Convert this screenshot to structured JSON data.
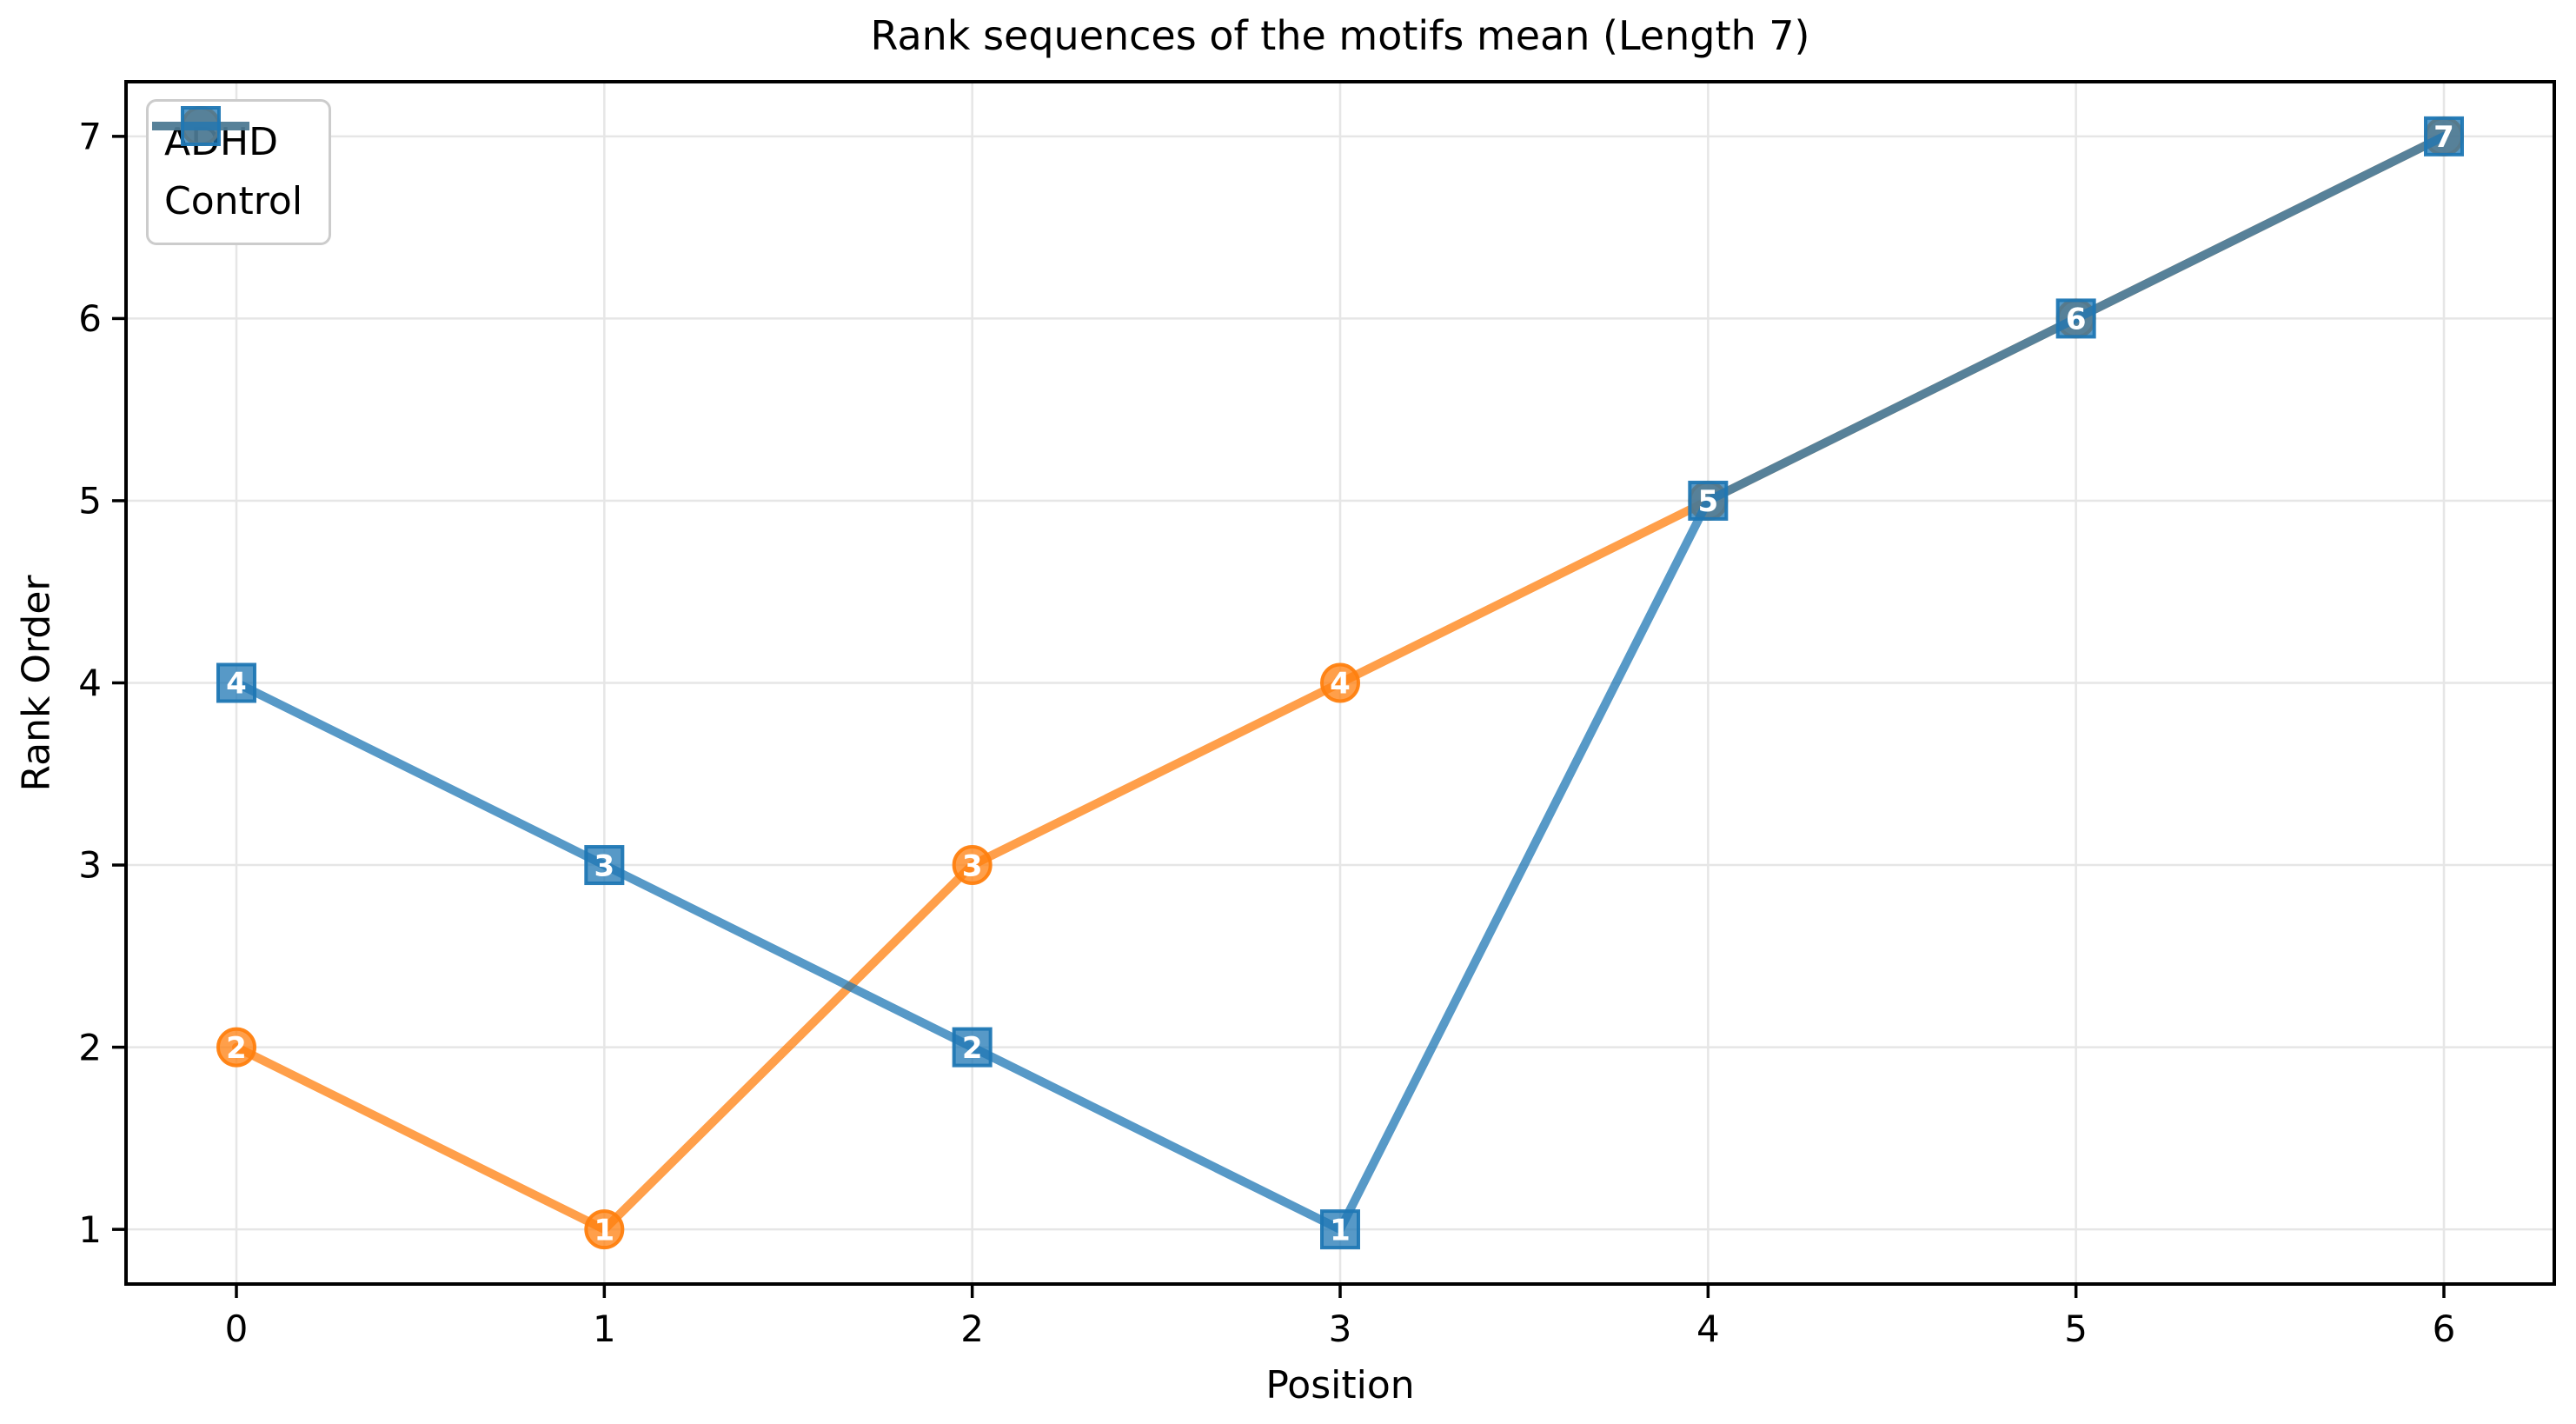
{
  "chart_data": {
    "type": "line",
    "title": "Rank sequences of the motifs mean (Length 7)",
    "xlabel": "Position",
    "ylabel": "Rank Order",
    "x": [
      0,
      1,
      2,
      3,
      4,
      5,
      6
    ],
    "xtick_labels": [
      "0",
      "1",
      "2",
      "3",
      "4",
      "5",
      "6"
    ],
    "ytick_labels": [
      "1",
      "2",
      "3",
      "4",
      "5",
      "6",
      "7"
    ],
    "xticks": [
      0,
      1,
      2,
      3,
      4,
      5,
      6
    ],
    "yticks": [
      1,
      2,
      3,
      4,
      5,
      6,
      7
    ],
    "xlim": [
      -0.3,
      6.3
    ],
    "ylim": [
      0.7,
      7.3
    ],
    "grid": true,
    "legend_position": "upper left",
    "series": [
      {
        "name": "ADHD",
        "color": "#ff7f0e",
        "marker": "circle",
        "alpha": 0.75,
        "values": [
          2,
          1,
          3,
          4,
          5,
          6,
          7
        ],
        "point_labels": [
          "2",
          "1",
          "3",
          "4",
          "5",
          "6",
          "7"
        ]
      },
      {
        "name": "Control",
        "color": "#1f77b4",
        "marker": "square",
        "alpha": 0.75,
        "values": [
          4,
          3,
          2,
          1,
          5,
          6,
          7
        ],
        "point_labels": [
          "4",
          "3",
          "2",
          "1",
          "5",
          "6",
          "7"
        ]
      }
    ],
    "colors": {
      "grid": "#e6e6e6",
      "spine": "#000000",
      "tick_text": "#000000",
      "marker_label": "#ffffff"
    }
  }
}
